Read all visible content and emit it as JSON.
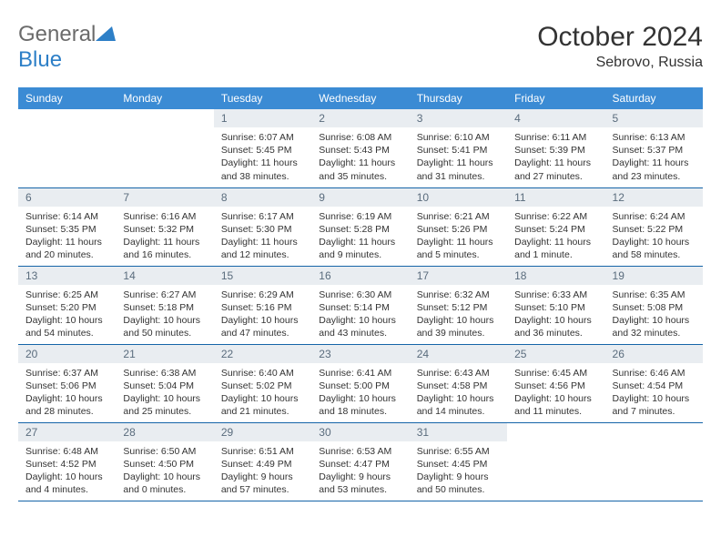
{
  "brand": {
    "part1": "General",
    "part2": "Blue"
  },
  "title": "October 2024",
  "location": "Sebrovo, Russia",
  "colors": {
    "header_bg": "#3b8bd4",
    "header_text": "#ffffff",
    "daynum_bg": "#e9edf1",
    "daynum_text": "#5a6c7d",
    "border": "#1565a8",
    "brand_gray": "#6b6b6b",
    "brand_blue": "#2d7fc7"
  },
  "daysOfWeek": [
    "Sunday",
    "Monday",
    "Tuesday",
    "Wednesday",
    "Thursday",
    "Friday",
    "Saturday"
  ],
  "grid": [
    [
      null,
      null,
      {
        "n": "1",
        "sunrise": "6:07 AM",
        "sunset": "5:45 PM",
        "daylight": "11 hours and 38 minutes."
      },
      {
        "n": "2",
        "sunrise": "6:08 AM",
        "sunset": "5:43 PM",
        "daylight": "11 hours and 35 minutes."
      },
      {
        "n": "3",
        "sunrise": "6:10 AM",
        "sunset": "5:41 PM",
        "daylight": "11 hours and 31 minutes."
      },
      {
        "n": "4",
        "sunrise": "6:11 AM",
        "sunset": "5:39 PM",
        "daylight": "11 hours and 27 minutes."
      },
      {
        "n": "5",
        "sunrise": "6:13 AM",
        "sunset": "5:37 PM",
        "daylight": "11 hours and 23 minutes."
      }
    ],
    [
      {
        "n": "6",
        "sunrise": "6:14 AM",
        "sunset": "5:35 PM",
        "daylight": "11 hours and 20 minutes."
      },
      {
        "n": "7",
        "sunrise": "6:16 AM",
        "sunset": "5:32 PM",
        "daylight": "11 hours and 16 minutes."
      },
      {
        "n": "8",
        "sunrise": "6:17 AM",
        "sunset": "5:30 PM",
        "daylight": "11 hours and 12 minutes."
      },
      {
        "n": "9",
        "sunrise": "6:19 AM",
        "sunset": "5:28 PM",
        "daylight": "11 hours and 9 minutes."
      },
      {
        "n": "10",
        "sunrise": "6:21 AM",
        "sunset": "5:26 PM",
        "daylight": "11 hours and 5 minutes."
      },
      {
        "n": "11",
        "sunrise": "6:22 AM",
        "sunset": "5:24 PM",
        "daylight": "11 hours and 1 minute."
      },
      {
        "n": "12",
        "sunrise": "6:24 AM",
        "sunset": "5:22 PM",
        "daylight": "10 hours and 58 minutes."
      }
    ],
    [
      {
        "n": "13",
        "sunrise": "6:25 AM",
        "sunset": "5:20 PM",
        "daylight": "10 hours and 54 minutes."
      },
      {
        "n": "14",
        "sunrise": "6:27 AM",
        "sunset": "5:18 PM",
        "daylight": "10 hours and 50 minutes."
      },
      {
        "n": "15",
        "sunrise": "6:29 AM",
        "sunset": "5:16 PM",
        "daylight": "10 hours and 47 minutes."
      },
      {
        "n": "16",
        "sunrise": "6:30 AM",
        "sunset": "5:14 PM",
        "daylight": "10 hours and 43 minutes."
      },
      {
        "n": "17",
        "sunrise": "6:32 AM",
        "sunset": "5:12 PM",
        "daylight": "10 hours and 39 minutes."
      },
      {
        "n": "18",
        "sunrise": "6:33 AM",
        "sunset": "5:10 PM",
        "daylight": "10 hours and 36 minutes."
      },
      {
        "n": "19",
        "sunrise": "6:35 AM",
        "sunset": "5:08 PM",
        "daylight": "10 hours and 32 minutes."
      }
    ],
    [
      {
        "n": "20",
        "sunrise": "6:37 AM",
        "sunset": "5:06 PM",
        "daylight": "10 hours and 28 minutes."
      },
      {
        "n": "21",
        "sunrise": "6:38 AM",
        "sunset": "5:04 PM",
        "daylight": "10 hours and 25 minutes."
      },
      {
        "n": "22",
        "sunrise": "6:40 AM",
        "sunset": "5:02 PM",
        "daylight": "10 hours and 21 minutes."
      },
      {
        "n": "23",
        "sunrise": "6:41 AM",
        "sunset": "5:00 PM",
        "daylight": "10 hours and 18 minutes."
      },
      {
        "n": "24",
        "sunrise": "6:43 AM",
        "sunset": "4:58 PM",
        "daylight": "10 hours and 14 minutes."
      },
      {
        "n": "25",
        "sunrise": "6:45 AM",
        "sunset": "4:56 PM",
        "daylight": "10 hours and 11 minutes."
      },
      {
        "n": "26",
        "sunrise": "6:46 AM",
        "sunset": "4:54 PM",
        "daylight": "10 hours and 7 minutes."
      }
    ],
    [
      {
        "n": "27",
        "sunrise": "6:48 AM",
        "sunset": "4:52 PM",
        "daylight": "10 hours and 4 minutes."
      },
      {
        "n": "28",
        "sunrise": "6:50 AM",
        "sunset": "4:50 PM",
        "daylight": "10 hours and 0 minutes."
      },
      {
        "n": "29",
        "sunrise": "6:51 AM",
        "sunset": "4:49 PM",
        "daylight": "9 hours and 57 minutes."
      },
      {
        "n": "30",
        "sunrise": "6:53 AM",
        "sunset": "4:47 PM",
        "daylight": "9 hours and 53 minutes."
      },
      {
        "n": "31",
        "sunrise": "6:55 AM",
        "sunset": "4:45 PM",
        "daylight": "9 hours and 50 minutes."
      },
      null,
      null
    ]
  ],
  "labels": {
    "sunrise": "Sunrise:",
    "sunset": "Sunset:",
    "daylight": "Daylight:"
  }
}
